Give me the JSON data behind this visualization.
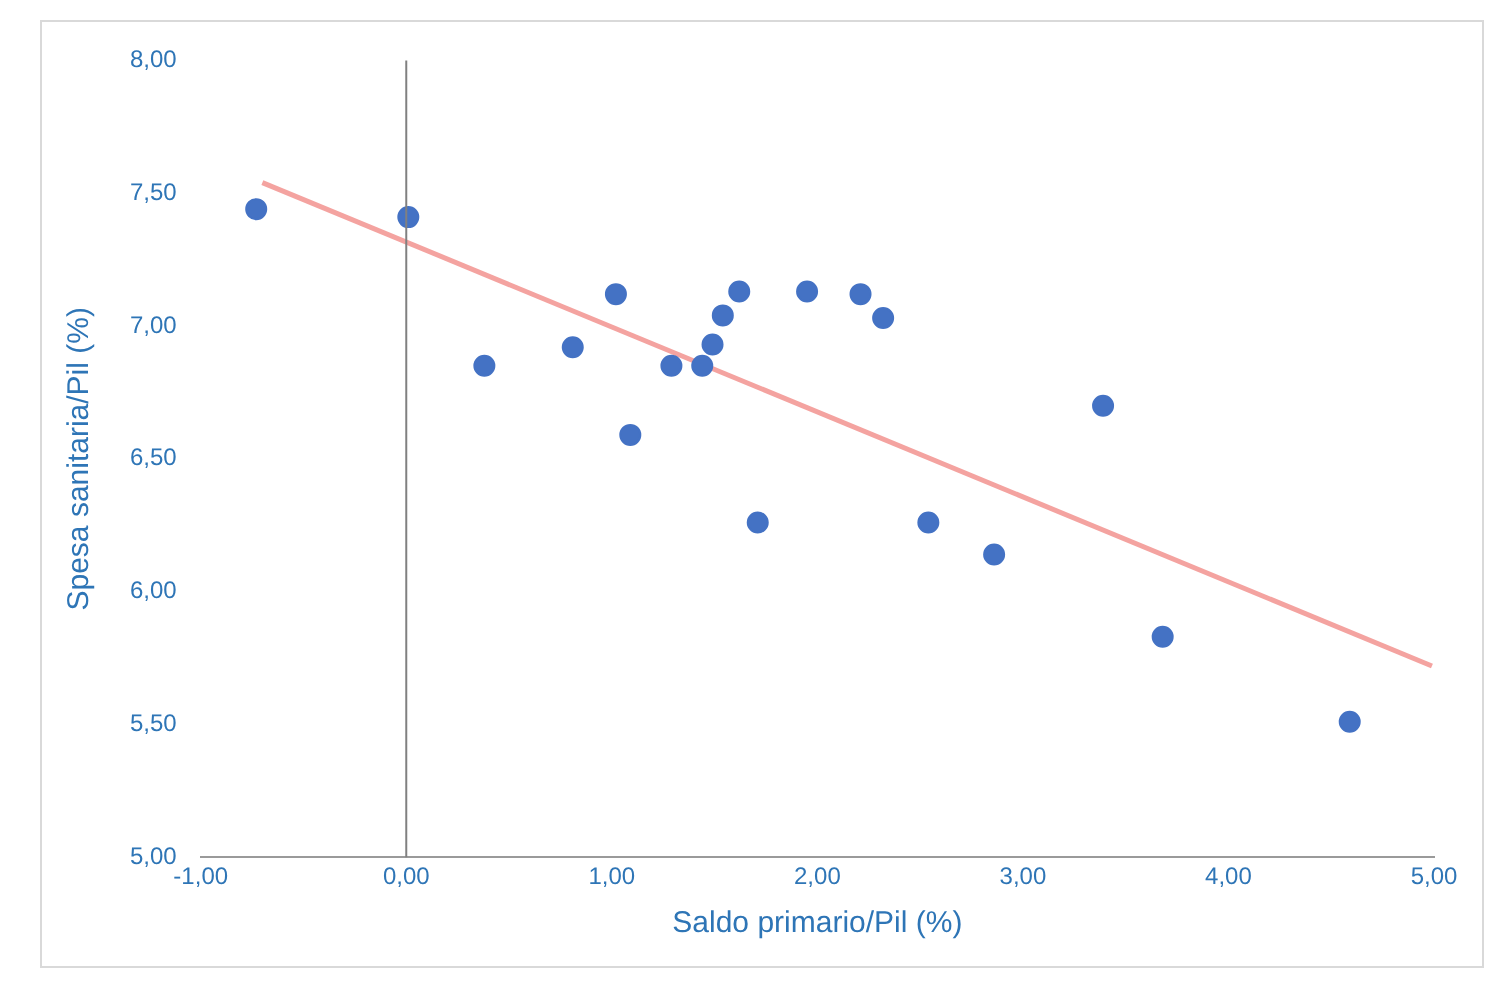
{
  "chart_data": {
    "type": "scatter",
    "xlabel": "Saldo primario/Pil (%)",
    "ylabel": "Spesa sanitaria/Pil (%)",
    "series": [
      {
        "color": "#4472c4",
        "marker": "circle",
        "x": [
          -0.73,
          0.01,
          0.38,
          0.81,
          1.02,
          1.09,
          1.29,
          1.44,
          1.49,
          1.54,
          1.62,
          1.71,
          1.95,
          2.21,
          2.32,
          2.54,
          2.86,
          3.39,
          3.68,
          4.59
        ],
        "values": [
          7.44,
          7.41,
          6.85,
          6.92,
          7.12,
          6.59,
          6.85,
          6.85,
          6.93,
          7.04,
          7.13,
          6.26,
          7.13,
          7.12,
          7.03,
          6.26,
          6.14,
          6.7,
          5.83,
          5.51
        ]
      },
      {
        "type": "line",
        "color": "#f4a3a0",
        "x": [
          -0.7,
          4.99
        ],
        "values": [
          7.54,
          5.72
        ],
        "marker": "none"
      }
    ],
    "xlim": [
      -1,
      5
    ],
    "xticks": [
      {
        "value": -1,
        "label": "-1,00"
      },
      {
        "value": 0,
        "label": "0,00"
      },
      {
        "value": 1,
        "label": "1,00"
      },
      {
        "value": 2,
        "label": "2,00"
      },
      {
        "value": 3,
        "label": "3,00"
      },
      {
        "value": 4,
        "label": "4,00"
      },
      {
        "value": 5,
        "label": "5,00"
      }
    ],
    "ylim": [
      5,
      8
    ],
    "yticks": [
      {
        "value": 5,
        "label": "5,00"
      },
      {
        "value": 5.5,
        "label": "5,50"
      },
      {
        "value": 6,
        "label": "6,00"
      },
      {
        "value": 6.5,
        "label": "6,50"
      },
      {
        "value": 7,
        "label": "7,00"
      },
      {
        "value": 7.5,
        "label": "7,50"
      },
      {
        "value": 8,
        "label": "8,00"
      }
    ],
    "ref_lines": [
      {
        "axis": "x",
        "value": 0,
        "color": "#808080"
      }
    ],
    "grid": false,
    "legend": false
  }
}
